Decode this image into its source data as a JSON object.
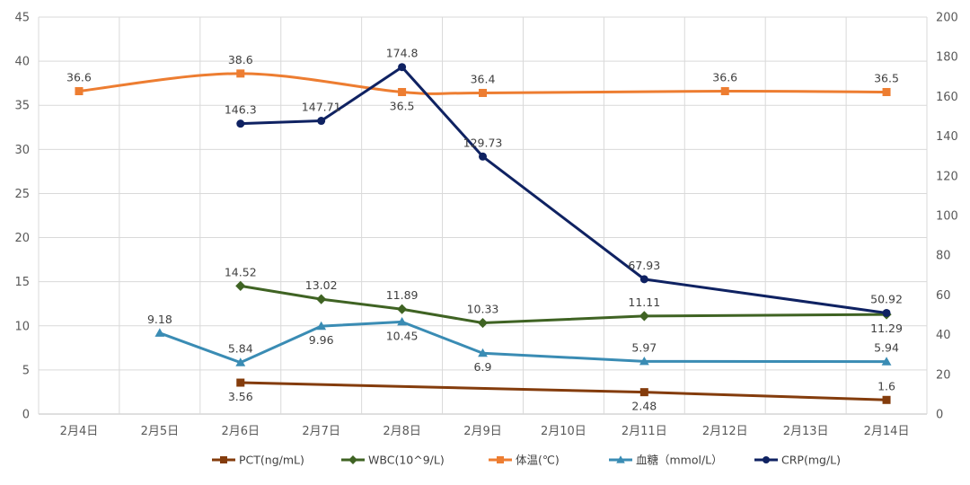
{
  "chart_data": {
    "type": "line",
    "categories": [
      "2月4日",
      "2月5日",
      "2月6日",
      "2月7日",
      "2月8日",
      "2月9日",
      "2月10日",
      "2月11日",
      "2月12日",
      "2月13日",
      "2月14日"
    ],
    "y_left": {
      "range": [
        0,
        45
      ],
      "ticks": [
        0,
        5,
        10,
        15,
        20,
        25,
        30,
        35,
        40,
        45
      ]
    },
    "y_right": {
      "range": [
        0,
        200
      ],
      "ticks": [
        0,
        20,
        40,
        60,
        80,
        100,
        120,
        140,
        160,
        180,
        200
      ]
    },
    "grid": true,
    "legend_position": "bottom",
    "series": [
      {
        "name": "PCT(ng/mL)",
        "color": "#843c0c",
        "marker": "square",
        "axis": "left",
        "smooth": false,
        "values": [
          null,
          null,
          3.56,
          null,
          null,
          null,
          null,
          2.48,
          null,
          null,
          1.6
        ],
        "labels": [
          null,
          null,
          "3.56",
          null,
          null,
          null,
          null,
          "2.48",
          null,
          null,
          "1.6"
        ],
        "label_pos": [
          null,
          null,
          "below",
          null,
          null,
          null,
          null,
          "below",
          null,
          null,
          "above"
        ]
      },
      {
        "name": "WBC(10^9/L)",
        "color": "#3f6323",
        "marker": "diamond",
        "axis": "left",
        "smooth": false,
        "values": [
          null,
          null,
          14.52,
          13.02,
          11.89,
          10.33,
          null,
          11.11,
          null,
          null,
          11.29
        ],
        "labels": [
          null,
          null,
          "14.52",
          "13.02",
          "11.89",
          "10.33",
          null,
          "11.11",
          null,
          null,
          "11.29"
        ],
        "label_pos": [
          null,
          null,
          "above",
          "above",
          "above",
          "above",
          null,
          "above",
          null,
          null,
          "below"
        ]
      },
      {
        "name": "体温(℃)",
        "color": "#ed7d31",
        "marker": "square",
        "axis": "left",
        "smooth": true,
        "values": [
          36.6,
          null,
          38.6,
          null,
          36.5,
          36.4,
          null,
          null,
          36.6,
          null,
          36.5
        ],
        "labels": [
          "36.6",
          null,
          "38.6",
          null,
          "36.5",
          "36.4",
          null,
          null,
          "36.6",
          null,
          "36.5"
        ],
        "label_pos": [
          "above",
          null,
          "above",
          null,
          "below",
          "above",
          null,
          null,
          "above",
          null,
          "above"
        ]
      },
      {
        "name": "血糖（mmol/L）",
        "color": "#3a8cb4",
        "marker": "triangle",
        "axis": "left",
        "smooth": false,
        "values": [
          null,
          9.18,
          5.84,
          9.96,
          10.45,
          6.9,
          null,
          5.97,
          null,
          null,
          5.94
        ],
        "labels": [
          null,
          "9.18",
          "5.84",
          "9.96",
          "10.45",
          "6.9",
          null,
          "5.97",
          null,
          null,
          "5.94"
        ],
        "label_pos": [
          null,
          "above",
          "above",
          "below",
          "below",
          "below",
          null,
          "above",
          null,
          null,
          "above"
        ]
      },
      {
        "name": "CRP(mg/L)",
        "color": "#0f2262",
        "marker": "circle",
        "axis": "right",
        "smooth": false,
        "values": [
          null,
          null,
          146.3,
          147.71,
          174.8,
          129.73,
          null,
          67.93,
          null,
          null,
          50.92
        ],
        "labels": [
          null,
          null,
          "146.3",
          "147.71",
          "174.8",
          "129.73",
          null,
          "67.93",
          null,
          null,
          "50.92"
        ],
        "label_pos": [
          null,
          null,
          "above",
          "above",
          "above",
          "above",
          null,
          "above",
          null,
          null,
          "above"
        ]
      }
    ]
  }
}
